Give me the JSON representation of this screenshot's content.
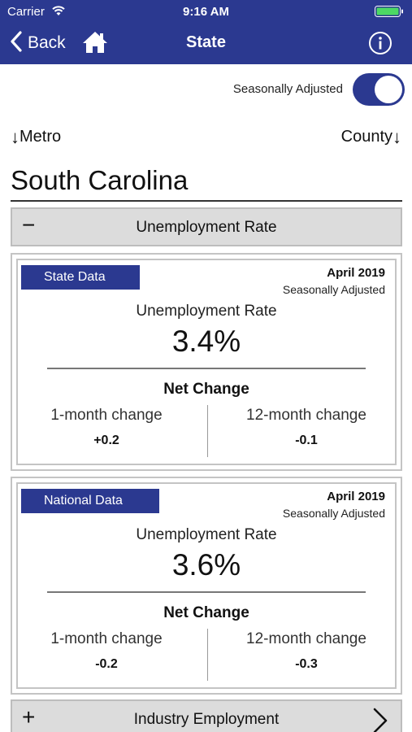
{
  "status_bar": {
    "carrier": "Carrier",
    "time": "9:16 AM",
    "wifi_icon": "wifi-icon",
    "battery_icon": "battery-icon",
    "battery_color": "#4cd964"
  },
  "nav": {
    "back_label": "Back",
    "title": "State",
    "back_icon": "chevron-left-icon",
    "home_icon": "home-icon",
    "info_icon": "info-icon",
    "bar_color": "#2b3990"
  },
  "filters": {
    "seasonally_adjusted_label": "Seasonally Adjusted",
    "seasonally_adjusted_on": true,
    "metro_label": "Metro",
    "county_label": "County"
  },
  "page": {
    "title": "South Carolina"
  },
  "sections": {
    "unemployment": {
      "label": "Unemployment Rate",
      "sign": "−",
      "expanded": true
    },
    "industry": {
      "label": "Industry Employment",
      "sign": "+",
      "expanded": false
    }
  },
  "cards": [
    {
      "badge": "State Data",
      "date": "April 2019",
      "adjustment": "Seasonally Adjusted",
      "metric_label": "Unemployment Rate",
      "metric_value": "3.4%",
      "net_change_label": "Net Change",
      "one_month_label": "1-month change",
      "one_month_value": "+0.2",
      "twelve_month_label": "12-month change",
      "twelve_month_value": "-0.1"
    },
    {
      "badge": "National Data",
      "date": "April 2019",
      "adjustment": "Seasonally Adjusted",
      "metric_label": "Unemployment Rate",
      "metric_value": "3.6%",
      "net_change_label": "Net Change",
      "one_month_label": "1-month change",
      "one_month_value": "-0.2",
      "twelve_month_label": "12-month change",
      "twelve_month_value": "-0.3"
    }
  ]
}
